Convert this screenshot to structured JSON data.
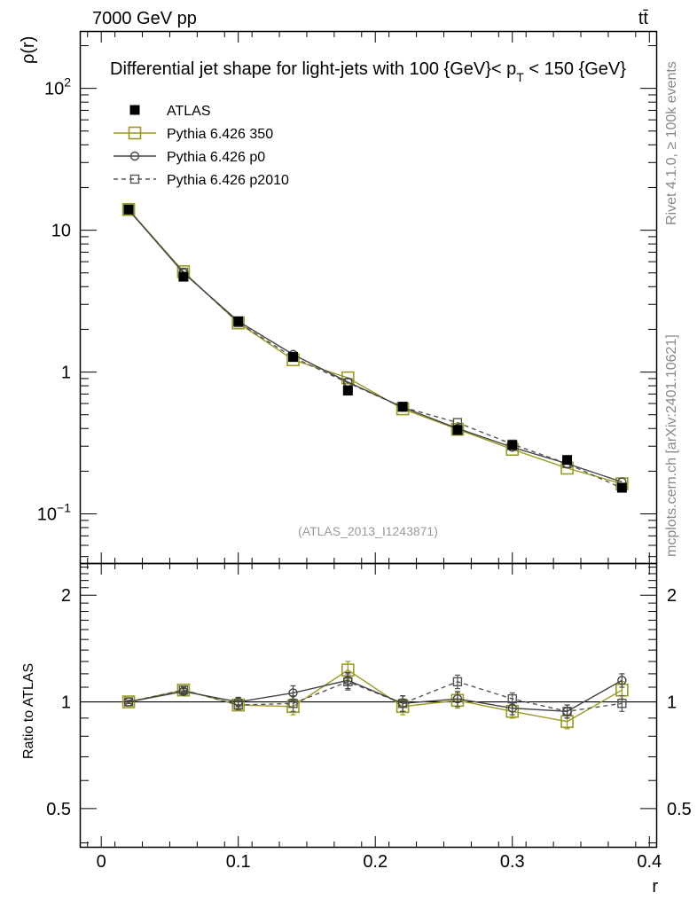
{
  "header": {
    "left": "7000 GeV pp",
    "right": "tt̄"
  },
  "side_labels": {
    "rivet": "Rivet 4.1.0, ≥ 100k events",
    "mcplots": "mcplots.cern.ch [arXiv:2401.10621]"
  },
  "colors": {
    "atlas": "#000000",
    "py350": "#9a9a1e",
    "p0": "#444444",
    "p2010": "#555555"
  },
  "chart_data": [
    {
      "type": "line",
      "title": "Differential jet shape for light-jets with 100 {GeV}< p_T < 150 {GeV}",
      "title_parts": [
        "Differential jet shape for light-jets with 100 {GeV}< p",
        "T",
        " < 150 {GeV}"
      ],
      "ylabel": "ρ(r)",
      "xlabel": "",
      "yscale": "log",
      "ylim": [
        0.045,
        250
      ],
      "xlim": [
        -0.015,
        0.405
      ],
      "yticks": [
        0.1,
        1,
        10,
        100
      ],
      "ytick_labels": [
        {
          "base": "10",
          "exp": "−1"
        },
        {
          "base": "1",
          "exp": ""
        },
        {
          "base": "10",
          "exp": ""
        },
        {
          "base": "10",
          "exp": "2"
        }
      ],
      "reference_label": "(ATLAS_2013_I1243871)",
      "legend_position": "top-left",
      "x": [
        0.02,
        0.06,
        0.1,
        0.14,
        0.18,
        0.22,
        0.26,
        0.3,
        0.34,
        0.38
      ],
      "series": [
        {
          "name": "ATLAS",
          "key": "atlas",
          "marker": "filled-square",
          "line": "none",
          "values": [
            14.0,
            4.7,
            2.28,
            1.28,
            0.74,
            0.57,
            0.39,
            0.305,
            0.24,
            0.153
          ]
        },
        {
          "name": "Pythia 6.426 350",
          "key": "py350",
          "marker": "open-square",
          "line": "solid",
          "values": [
            14.0,
            5.1,
            2.22,
            1.22,
            0.91,
            0.55,
            0.395,
            0.285,
            0.21,
            0.163
          ]
        },
        {
          "name": "Pythia 6.426 p0",
          "key": "p0",
          "marker": "open-circle",
          "line": "solid",
          "values": [
            13.9,
            5.0,
            2.28,
            1.33,
            0.85,
            0.565,
            0.4,
            0.295,
            0.226,
            0.168
          ]
        },
        {
          "name": "Pythia 6.426 p2010",
          "key": "p2010",
          "marker": "open-square-small",
          "line": "dashed",
          "values": [
            13.9,
            5.05,
            2.23,
            1.27,
            0.84,
            0.565,
            0.44,
            0.31,
            0.226,
            0.152
          ]
        }
      ]
    },
    {
      "type": "line",
      "title": "",
      "ylabel": "Ratio to ATLAS",
      "xlabel": "r",
      "yscale": "log",
      "ylim": [
        0.39,
        2.45
      ],
      "xlim": [
        -0.015,
        0.405
      ],
      "yticks": [
        0.5,
        1,
        2
      ],
      "ytick_labels": [
        "0.5",
        "1",
        "2"
      ],
      "xticks": [
        0,
        0.1,
        0.2,
        0.3,
        0.4
      ],
      "xtick_labels": [
        "0",
        "0.1",
        "0.2",
        "0.3",
        "0.4"
      ],
      "x": [
        0.02,
        0.06,
        0.1,
        0.14,
        0.18,
        0.22,
        0.26,
        0.3,
        0.34,
        0.38
      ],
      "series": [
        {
          "name": "Pythia 6.426 350",
          "key": "py350",
          "marker": "open-square",
          "line": "solid",
          "values": [
            1.0,
            1.08,
            0.98,
            0.97,
            1.23,
            0.97,
            1.01,
            0.94,
            0.88,
            1.08
          ],
          "errors": [
            0.01,
            0.02,
            0.02,
            0.05,
            0.07,
            0.05,
            0.05,
            0.04,
            0.04,
            0.06
          ]
        },
        {
          "name": "Pythia 6.426 p0",
          "key": "p0",
          "marker": "open-circle",
          "line": "solid",
          "values": [
            1.0,
            1.07,
            1.0,
            1.06,
            1.15,
            0.99,
            1.02,
            0.96,
            0.94,
            1.15
          ],
          "errors": [
            0.01,
            0.02,
            0.03,
            0.05,
            0.06,
            0.05,
            0.05,
            0.04,
            0.04,
            0.05
          ]
        },
        {
          "name": "Pythia 6.426 p2010",
          "key": "p2010",
          "marker": "open-square-small",
          "line": "dashed",
          "values": [
            1.0,
            1.08,
            0.98,
            0.99,
            1.14,
            0.99,
            1.14,
            1.02,
            0.94,
            0.99
          ],
          "errors": [
            0.01,
            0.02,
            0.03,
            0.05,
            0.06,
            0.05,
            0.05,
            0.04,
            0.04,
            0.05
          ]
        }
      ]
    }
  ]
}
